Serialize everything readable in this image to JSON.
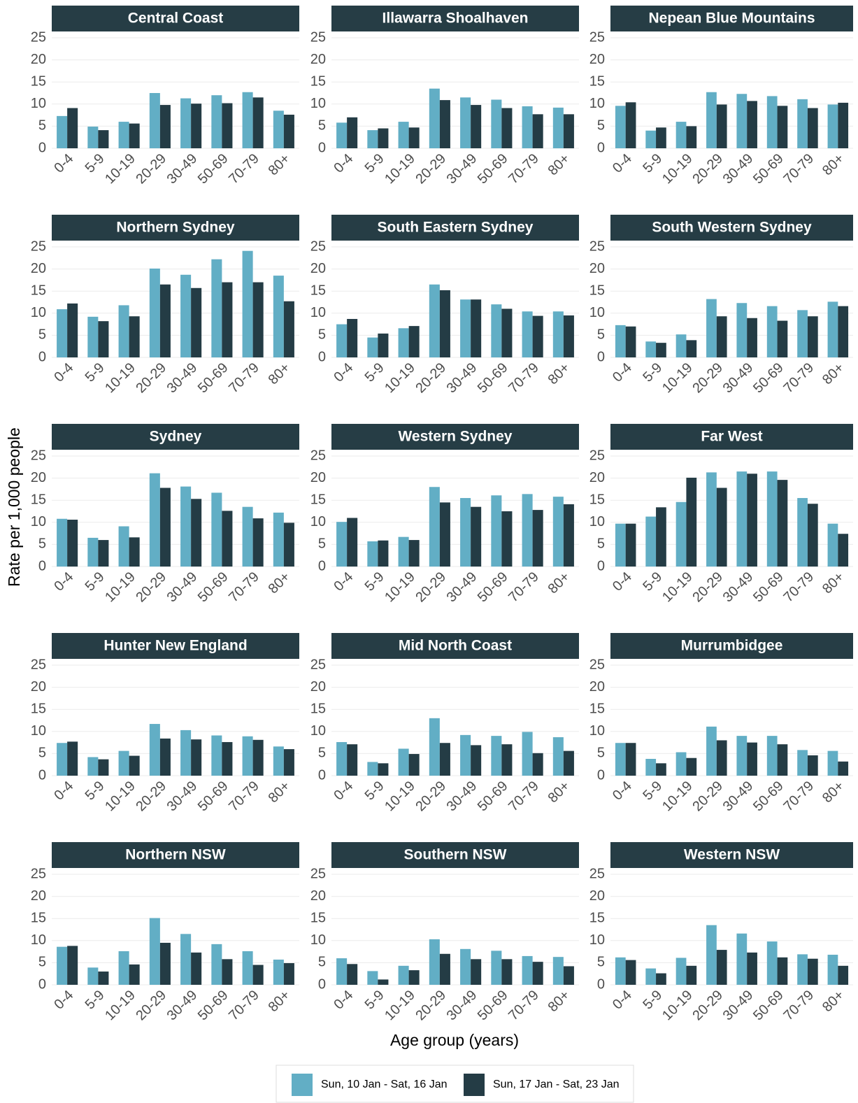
{
  "chart_data": {
    "type": "bar",
    "y_label": "Rate per 1,000 people",
    "x_label": "Age group (years)",
    "categories": [
      "0-4",
      "5-9",
      "10-19",
      "20-29",
      "30-49",
      "50-69",
      "70-79",
      "80+"
    ],
    "ylim": [
      0,
      25
    ],
    "yticks": [
      0,
      5,
      10,
      15,
      20,
      25
    ],
    "grid": true,
    "legend": "bottom",
    "series": [
      {
        "name": "Sun, 10 Jan - Sat, 16 Jan",
        "color": "#62aec5"
      },
      {
        "name": "Sun, 17 Jan - Sat, 23 Jan",
        "color": "#243c45"
      }
    ],
    "panels": [
      {
        "title": "Central Coast",
        "series": [
          {
            "values": [
              7.3,
              4.9,
              6.0,
              12.5,
              11.3,
              12.0,
              12.7,
              8.5
            ]
          },
          {
            "values": [
              9.1,
              4.1,
              5.6,
              9.8,
              10.1,
              10.2,
              11.5,
              7.6
            ]
          }
        ]
      },
      {
        "title": "Illawarra Shoalhaven",
        "series": [
          {
            "values": [
              5.8,
              4.1,
              6.0,
              13.5,
              11.5,
              11.0,
              9.5,
              9.2
            ]
          },
          {
            "values": [
              7.0,
              4.5,
              4.7,
              10.9,
              9.8,
              9.1,
              7.7,
              7.7
            ]
          }
        ]
      },
      {
        "title": "Nepean Blue Mountains",
        "series": [
          {
            "values": [
              9.6,
              4.0,
              6.0,
              12.7,
              12.3,
              11.8,
              11.1,
              9.9
            ]
          },
          {
            "values": [
              10.4,
              4.7,
              5.0,
              9.9,
              10.7,
              9.6,
              9.1,
              10.3
            ]
          }
        ]
      },
      {
        "title": "Northern Sydney",
        "series": [
          {
            "values": [
              10.9,
              9.2,
              11.8,
              20.1,
              18.7,
              22.2,
              24.1,
              18.5
            ]
          },
          {
            "values": [
              12.2,
              8.2,
              9.3,
              16.5,
              15.7,
              17.0,
              17.0,
              12.7
            ]
          }
        ]
      },
      {
        "title": "South Eastern Sydney",
        "series": [
          {
            "values": [
              7.5,
              4.5,
              6.6,
              16.5,
              13.1,
              12.0,
              10.4,
              10.4
            ]
          },
          {
            "values": [
              8.7,
              5.4,
              7.1,
              15.2,
              13.1,
              11.0,
              9.4,
              9.5
            ]
          }
        ]
      },
      {
        "title": "South Western Sydney",
        "series": [
          {
            "values": [
              7.3,
              3.6,
              5.2,
              13.2,
              12.3,
              11.6,
              10.7,
              12.6
            ]
          },
          {
            "values": [
              7.0,
              3.3,
              3.9,
              9.3,
              8.9,
              8.3,
              9.3,
              11.6
            ]
          }
        ]
      },
      {
        "title": "Sydney",
        "series": [
          {
            "values": [
              10.8,
              6.5,
              9.1,
              21.1,
              18.1,
              16.7,
              13.5,
              12.2
            ]
          },
          {
            "values": [
              10.6,
              6.0,
              6.6,
              17.8,
              15.3,
              12.6,
              10.9,
              9.9
            ]
          }
        ]
      },
      {
        "title": "Western Sydney",
        "series": [
          {
            "values": [
              10.1,
              5.7,
              6.7,
              18.0,
              15.5,
              16.1,
              16.4,
              15.8
            ]
          },
          {
            "values": [
              11.0,
              5.9,
              6.0,
              14.5,
              13.5,
              12.5,
              12.8,
              14.1
            ]
          }
        ]
      },
      {
        "title": "Far West",
        "series": [
          {
            "values": [
              9.7,
              11.3,
              14.6,
              21.3,
              21.5,
              21.5,
              15.5,
              9.7
            ]
          },
          {
            "values": [
              9.7,
              13.4,
              20.1,
              17.8,
              21.0,
              19.6,
              14.2,
              7.4
            ]
          }
        ]
      },
      {
        "title": "Hunter New England",
        "series": [
          {
            "values": [
              7.4,
              4.2,
              5.6,
              11.7,
              10.3,
              9.1,
              8.9,
              6.6
            ]
          },
          {
            "values": [
              7.7,
              3.7,
              4.5,
              8.4,
              8.2,
              7.6,
              8.1,
              6.0
            ]
          }
        ]
      },
      {
        "title": "Mid North Coast",
        "series": [
          {
            "values": [
              7.6,
              3.1,
              6.1,
              13.0,
              9.2,
              9.0,
              9.9,
              8.7
            ]
          },
          {
            "values": [
              7.1,
              2.8,
              4.9,
              7.4,
              6.9,
              7.1,
              5.1,
              5.6
            ]
          }
        ]
      },
      {
        "title": "Murrumbidgee",
        "series": [
          {
            "values": [
              7.4,
              3.8,
              5.3,
              11.1,
              9.0,
              9.0,
              5.8,
              5.6
            ]
          },
          {
            "values": [
              7.4,
              2.8,
              4.0,
              8.0,
              7.5,
              7.1,
              4.6,
              3.2
            ]
          }
        ]
      },
      {
        "title": "Northern NSW",
        "series": [
          {
            "values": [
              8.6,
              3.9,
              7.6,
              15.1,
              11.5,
              9.2,
              7.6,
              5.7
            ]
          },
          {
            "values": [
              8.8,
              3.0,
              4.6,
              9.5,
              7.3,
              5.8,
              4.5,
              4.9
            ]
          }
        ]
      },
      {
        "title": "Southern NSW",
        "series": [
          {
            "values": [
              6.0,
              3.1,
              4.3,
              10.3,
              8.1,
              7.7,
              6.5,
              6.3
            ]
          },
          {
            "values": [
              4.7,
              1.2,
              3.3,
              7.0,
              5.8,
              5.8,
              5.2,
              4.2
            ]
          }
        ]
      },
      {
        "title": "Western NSW",
        "series": [
          {
            "values": [
              6.2,
              3.7,
              6.1,
              13.5,
              11.6,
              9.8,
              6.9,
              6.8
            ]
          },
          {
            "values": [
              5.6,
              2.6,
              4.3,
              7.9,
              7.3,
              6.2,
              5.9,
              4.3
            ]
          }
        ]
      }
    ]
  }
}
